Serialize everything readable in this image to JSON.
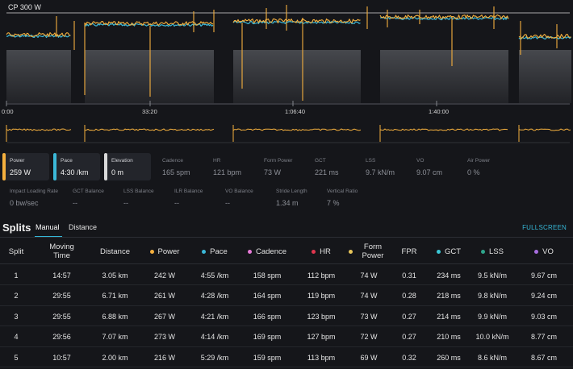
{
  "chart": {
    "cp_label": "CP 300 W",
    "x_ticks": [
      "0:00",
      "33:20",
      "1:06:40",
      "1:40:00"
    ],
    "colors": {
      "power": "#f5b03e",
      "pace": "#3bb8d8",
      "background_bars": "#3d3f44",
      "cp_line": "#d9d9d9"
    }
  },
  "metrics": [
    {
      "label": "Power",
      "value": "259 W",
      "color": "#f5b03e",
      "selected": true
    },
    {
      "label": "Pace",
      "value": "4:30 /km",
      "color": "#3bb8d8",
      "selected": true
    },
    {
      "label": "Elevation",
      "value": "0 m",
      "color": "#d9d9d9",
      "selected": true
    },
    {
      "label": "Cadence",
      "value": "165 spm",
      "selected": false
    },
    {
      "label": "HR",
      "value": "121 bpm",
      "selected": false
    },
    {
      "label": "Form Power",
      "value": "73 W",
      "selected": false
    },
    {
      "label": "GCT",
      "value": "221 ms",
      "selected": false
    },
    {
      "label": "LSS",
      "value": "9.7 kN/m",
      "selected": false
    },
    {
      "label": "VO",
      "value": "9.07 cm",
      "selected": false
    },
    {
      "label": "Air Power",
      "value": "0 %",
      "selected": false
    },
    {
      "label": "Impact Loading Rate",
      "value": "0 bw/sec",
      "selected": false
    },
    {
      "label": "GCT Balance",
      "value": "--",
      "selected": false
    },
    {
      "label": "LSS Balance",
      "value": "--",
      "selected": false
    },
    {
      "label": "ILR Balance",
      "value": "--",
      "selected": false
    },
    {
      "label": "VO Balance",
      "value": "--",
      "selected": false
    },
    {
      "label": "Stride Length",
      "value": "1.34 m",
      "selected": false
    },
    {
      "label": "Vertical Ratio",
      "value": "7 %",
      "selected": false
    }
  ],
  "splits": {
    "title": "Splits",
    "tabs": [
      "Manual",
      "Distance"
    ],
    "fullscreen_label": "FULLSCREEN",
    "columns": [
      {
        "label": "Split"
      },
      {
        "label": "Moving Time"
      },
      {
        "label": "Distance"
      },
      {
        "label": "Power",
        "dot": "#f5b03e"
      },
      {
        "label": "Pace",
        "dot": "#3bb8d8"
      },
      {
        "label": "Cadence",
        "dot": "#e77ad8"
      },
      {
        "label": "HR",
        "dot": "#e0364e"
      },
      {
        "label": "Form Power",
        "dot": "#e7c55a"
      },
      {
        "label": "FPR"
      },
      {
        "label": "GCT",
        "dot": "#3bc7d6"
      },
      {
        "label": "LSS",
        "dot": "#2fa58c"
      },
      {
        "label": "VO",
        "dot": "#a86ee0"
      }
    ],
    "rows": [
      [
        "1",
        "14:57",
        "3.05 km",
        "242 W",
        "4:55 /km",
        "158 spm",
        "112 bpm",
        "74 W",
        "0.31",
        "234 ms",
        "9.5 kN/m",
        "9.67 cm"
      ],
      [
        "2",
        "29:55",
        "6.71 km",
        "261 W",
        "4:28 /km",
        "164 spm",
        "119 bpm",
        "74 W",
        "0.28",
        "218 ms",
        "9.8 kN/m",
        "9.24 cm"
      ],
      [
        "3",
        "29:55",
        "6.88 km",
        "267 W",
        "4:21 /km",
        "166 spm",
        "123 bpm",
        "73 W",
        "0.27",
        "214 ms",
        "9.9 kN/m",
        "9.03 cm"
      ],
      [
        "4",
        "29:56",
        "7.07 km",
        "273 W",
        "4:14 /km",
        "169 spm",
        "127 bpm",
        "72 W",
        "0.27",
        "210 ms",
        "10.0 kN/m",
        "8.77 cm"
      ],
      [
        "5",
        "10:57",
        "2.00 km",
        "216 W",
        "5:29 /km",
        "159 spm",
        "113 bpm",
        "69 W",
        "0.32",
        "260 ms",
        "8.6 kN/m",
        "8.67 cm"
      ]
    ]
  }
}
